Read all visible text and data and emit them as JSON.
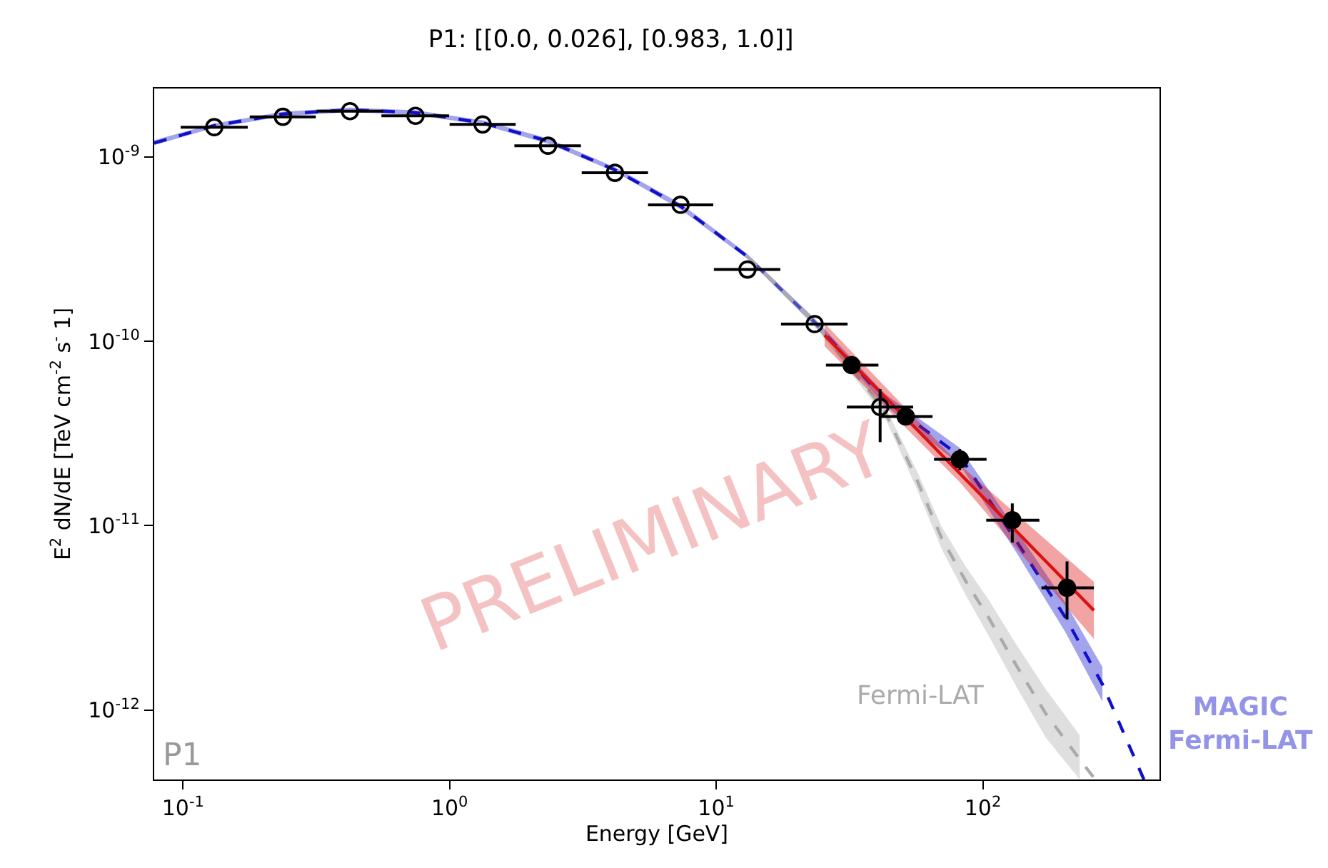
{
  "chart_data": {
    "type": "scatter",
    "title": "P1: [[0.0, 0.026], [0.983, 1.0]]",
    "xlabel": "Energy [GeV]",
    "ylabel": "E$^{2}$ dN/dE [TeV cm$^{-2}$ s$^{-}$ 1]",
    "log": "xy",
    "xlim": [
      0.078,
      460
    ],
    "ylim": [
      4.2e-13,
      2.35e-09
    ],
    "xticks": [
      {
        "value": 0.1,
        "label": "10$^{-1}$"
      },
      {
        "value": 1,
        "label": "10$^{0}$"
      },
      {
        "value": 10,
        "label": "10$^{1}$"
      },
      {
        "value": 100,
        "label": "10$^{2}$"
      }
    ],
    "yticks": [
      {
        "value": 1e-09,
        "label": "10$^{-9}$"
      },
      {
        "value": 1e-10,
        "label": "10$^{-10}$"
      },
      {
        "value": 1e-11,
        "label": "10$^{-11}$"
      },
      {
        "value": 1e-12,
        "label": "10$^{-12}$"
      }
    ],
    "legend": false,
    "series": [
      {
        "name": "MAGIC\nFermi-LAT",
        "type": "line",
        "line_style": "dashed",
        "color": "#1010cc",
        "x": [
          0.078,
          0.131,
          0.237,
          0.423,
          0.745,
          1.33,
          2.34,
          4.17,
          7.35,
          13.1,
          23.4,
          42.8,
          82,
          134,
          204,
          281,
          402
        ],
        "values": [
          1.19e-09,
          1.48e-09,
          1.71e-09,
          1.8e-09,
          1.74e-09,
          1.53e-09,
          1.22e-09,
          8.5e-10,
          5.4e-10,
          2.88e-10,
          1.27e-10,
          4.84e-11,
          2.38e-11,
          8.2e-12,
          3.18e-12,
          1.38e-12,
          4.2e-13
        ],
        "lower": [
          1.16e-09,
          1.44e-09,
          1.66e-09,
          1.75e-09,
          1.69e-09,
          1.49e-09,
          1.18e-09,
          8.3e-10,
          5.2e-10,
          2.8e-10,
          1.21e-10,
          4.51e-11,
          2.14e-11,
          7.1e-12,
          2.65e-12,
          1.11e-12,
          null
        ],
        "upper": [
          1.23e-09,
          1.52e-09,
          1.76e-09,
          1.85e-09,
          1.79e-09,
          1.58e-09,
          1.26e-09,
          8.8e-10,
          5.6e-10,
          2.97e-10,
          1.33e-10,
          5.2e-11,
          2.64e-11,
          9.4e-12,
          3.82e-12,
          1.71e-12,
          null
        ]
      },
      {
        "name": "Fermi-LAT",
        "type": "line",
        "line_style": "dashed",
        "color": "#aaaaaa",
        "x": [
          13.1,
          23.4,
          42.8,
          56.8,
          70,
          86.3,
          105,
          134,
          172,
          231,
          264
        ],
        "values": [
          2.88e-10,
          1.27e-10,
          4.2e-11,
          1.75e-11,
          8.6e-12,
          5e-12,
          3.18e-12,
          1.73e-12,
          9.6e-13,
          5.4e-13,
          4.2e-13
        ],
        "lower": [
          2.8e-10,
          1.21e-10,
          3.9e-11,
          1.56e-11,
          7.5e-12,
          4.2e-12,
          2.54e-12,
          1.33e-12,
          7.1e-13,
          4.2e-13,
          null
        ],
        "upper": [
          2.97e-10,
          1.33e-10,
          4.5e-11,
          1.96e-11,
          9.9e-12,
          6e-12,
          3.98e-12,
          2.25e-12,
          1.3e-12,
          7.3e-13,
          null
        ]
      },
      {
        "type": "line",
        "line_style": "solid",
        "color": "#dd1111",
        "x": [
          25.5,
          82,
          261
        ],
        "values": [
          1.08e-10,
          1.92e-11,
          3.47e-12
        ],
        "lower": [
          9.4e-11,
          1.72e-11,
          2.43e-12
        ],
        "upper": [
          1.25e-10,
          2.14e-11,
          4.96e-12
        ]
      },
      {
        "marker": "circle-open",
        "color": "#000000",
        "x": [
          0.131,
          0.237,
          0.423,
          0.745,
          1.33,
          2.34,
          4.17,
          7.35,
          13.1,
          23.4,
          41.2
        ],
        "values": [
          1.45e-09,
          1.65e-09,
          1.77e-09,
          1.67e-09,
          1.5e-09,
          1.15e-09,
          8.2e-10,
          5.5e-10,
          2.45e-10,
          1.24e-10,
          4.4e-11
        ],
        "errors": [
          null,
          null,
          null,
          null,
          null,
          null,
          null,
          null,
          null,
          null,
          [
            2.84e-11,
            5.5e-11
          ]
        ],
        "xerrors": [
          [
            0.098,
            0.175
          ],
          [
            0.178,
            0.315
          ],
          [
            0.317,
            0.563
          ],
          [
            0.555,
            0.995
          ],
          [
            1.0,
            1.77
          ],
          [
            1.75,
            3.11
          ],
          [
            3.13,
            5.55
          ],
          [
            5.55,
            9.75
          ],
          [
            9.8,
            17.4
          ],
          [
            17.5,
            31.1
          ],
          [
            30.9,
            54.8
          ]
        ]
      },
      {
        "marker": "circle",
        "color": "#000000",
        "x": [
          32.2,
          51.4,
          82,
          129,
          207
        ],
        "values": [
          7.43e-11,
          3.91e-11,
          2.29e-11,
          1.07e-11,
          4.6e-12
        ],
        "errors": [
          [
            6.7e-11,
            8.1e-11
          ],
          [
            3.7e-11,
            4.2e-11
          ],
          [
            2e-11,
            2.6e-11
          ],
          [
            8.1e-12,
            1.32e-11
          ],
          [
            3.1e-12,
            6.4e-12
          ]
        ],
        "xerrors": [
          [
            25.8,
            40.6
          ],
          [
            41.1,
            64.8
          ],
          [
            65.6,
            103.3
          ],
          [
            103,
            163
          ],
          [
            166,
            261
          ]
        ]
      }
    ],
    "annotations": [
      "PRELIMINARY",
      "P1"
    ]
  }
}
